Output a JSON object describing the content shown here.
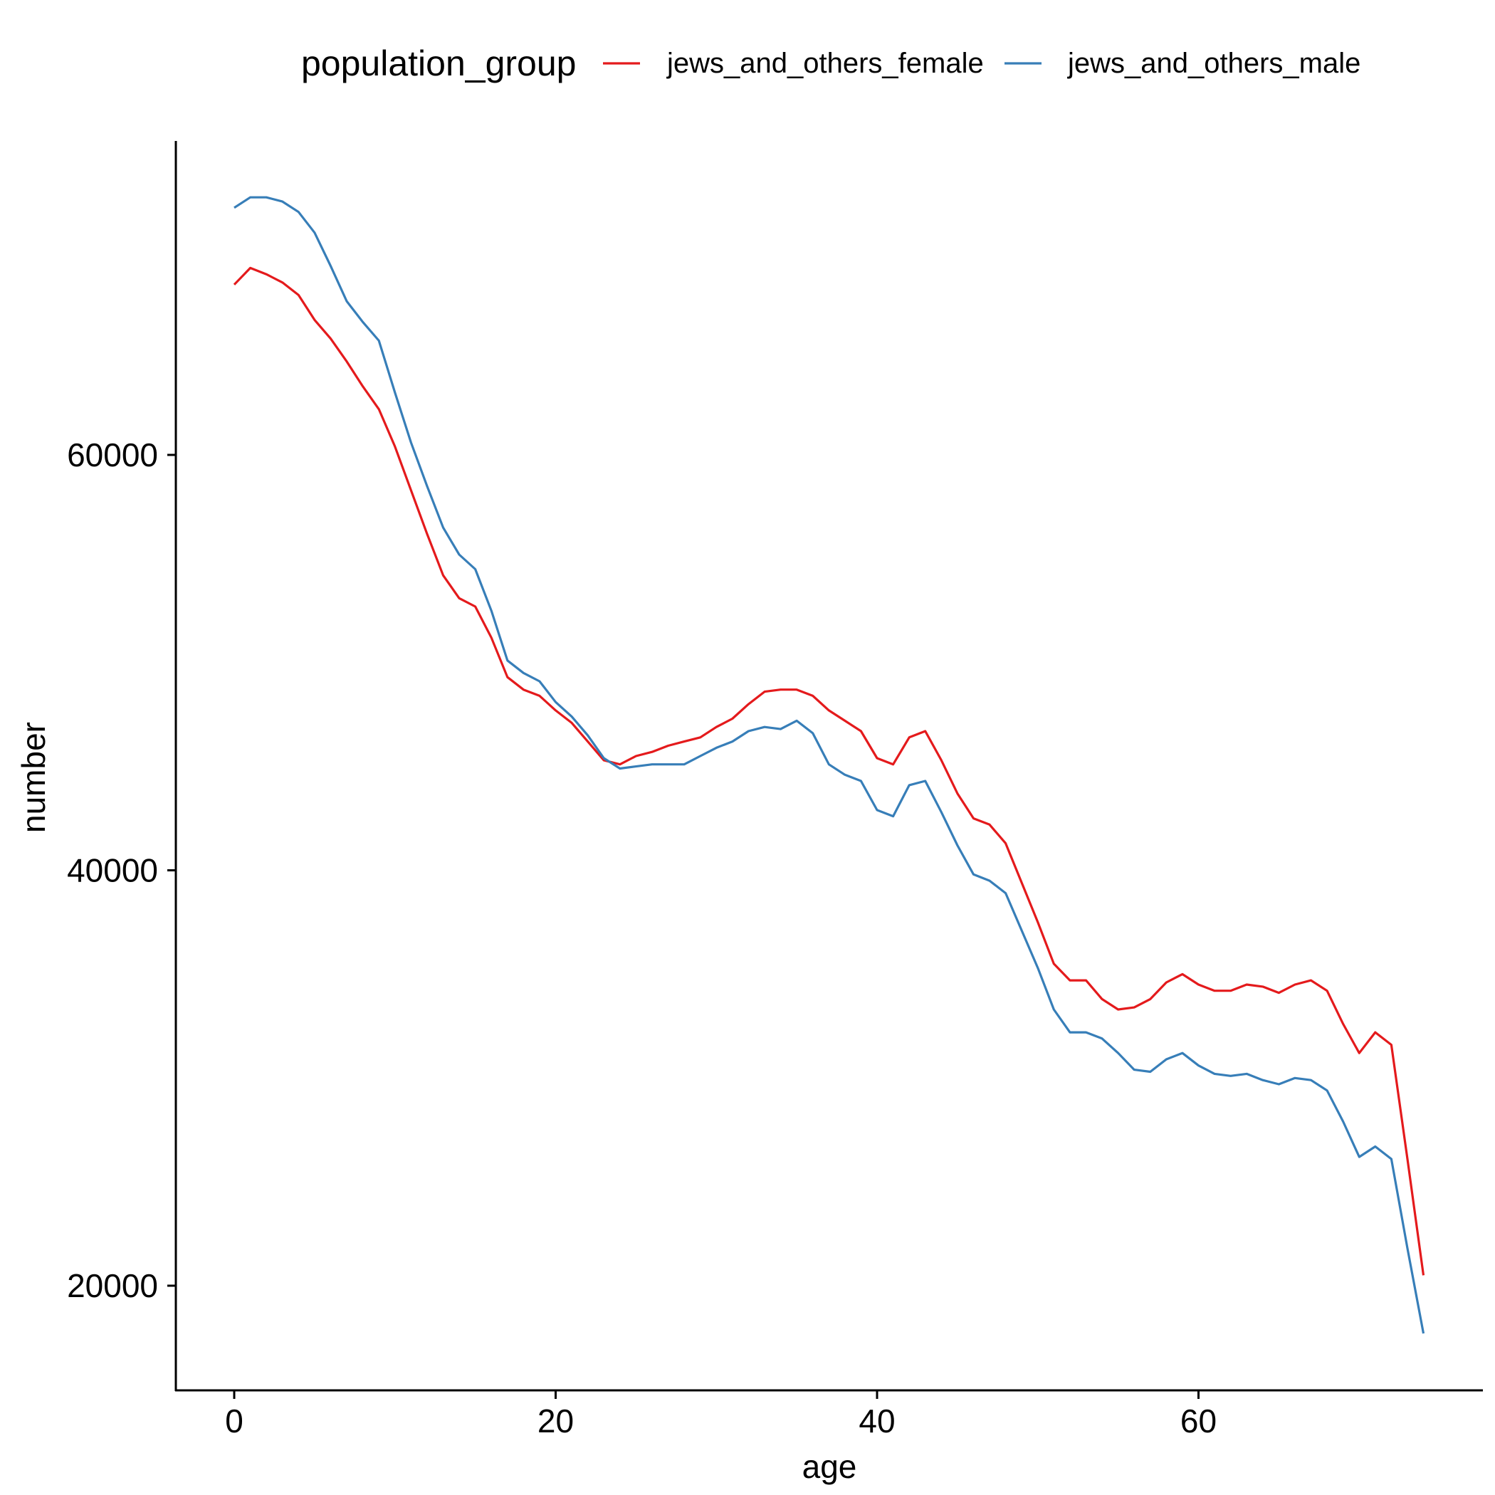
{
  "chart_data": {
    "type": "line",
    "xlabel": "age",
    "ylabel": "number",
    "xlim": [
      -4,
      76
    ],
    "ylim": [
      15000,
      75000
    ],
    "xticks": [
      0,
      20,
      40,
      60
    ],
    "yticks": [
      20000,
      40000,
      60000
    ],
    "grid": false,
    "legend": {
      "title": "population_group",
      "position": "top"
    },
    "x": [
      0,
      1,
      2,
      3,
      4,
      5,
      6,
      7,
      8,
      9,
      10,
      11,
      12,
      13,
      14,
      15,
      16,
      17,
      18,
      19,
      20,
      21,
      22,
      23,
      24,
      25,
      26,
      27,
      28,
      29,
      30,
      31,
      32,
      33,
      34,
      35,
      36,
      37,
      38,
      39,
      40,
      41,
      42,
      43,
      44,
      45,
      46,
      47,
      48,
      49,
      50,
      51,
      52,
      53,
      54,
      55,
      56,
      57,
      58,
      59,
      60,
      61,
      62,
      63,
      64,
      65,
      66,
      67,
      68,
      69,
      70,
      71,
      72,
      73,
      74
    ],
    "series": [
      {
        "name": "jews_and_others_female",
        "color": "#e41a1c",
        "values": [
          68200,
          69000,
          68700,
          68300,
          67700,
          66500,
          65600,
          64500,
          63300,
          62200,
          60400,
          58300,
          56200,
          54200,
          53100,
          52700,
          51200,
          49300,
          48700,
          48400,
          47700,
          47100,
          46200,
          45300,
          45100,
          45500,
          45700,
          46000,
          46200,
          46400,
          46900,
          47300,
          48000,
          48600,
          48700,
          48700,
          48400,
          47700,
          47200,
          46700,
          45400,
          45100,
          46400,
          46700,
          45300,
          43700,
          42500,
          42200,
          41300,
          39400,
          37500,
          35500,
          34700,
          34700,
          33800,
          33300,
          33400,
          33800,
          34600,
          35000,
          34500,
          34200,
          34200,
          34500,
          34400,
          34100,
          34500,
          34700,
          34200,
          32600,
          31200,
          32200,
          31600,
          26100,
          20500
        ]
      },
      {
        "name": "jews_and_others_male",
        "color": "#377eb8",
        "values": [
          71900,
          72400,
          72400,
          72200,
          71700,
          70700,
          69100,
          67400,
          66400,
          65500,
          63000,
          60600,
          58500,
          56500,
          55200,
          54500,
          52500,
          50100,
          49500,
          49100,
          48100,
          47400,
          46500,
          45400,
          44900,
          45000,
          45100,
          45100,
          45100,
          45500,
          45900,
          46200,
          46700,
          46900,
          46800,
          47200,
          46600,
          45100,
          44600,
          44300,
          42900,
          42600,
          44100,
          44300,
          42800,
          41200,
          39800,
          39500,
          38900,
          37100,
          35300,
          33300,
          32200,
          32200,
          31900,
          31200,
          30400,
          30300,
          30900,
          31200,
          30600,
          30200,
          30100,
          30200,
          29900,
          29700,
          30000,
          29900,
          29400,
          27900,
          26200,
          26700,
          26100,
          21800,
          17700
        ]
      }
    ]
  }
}
